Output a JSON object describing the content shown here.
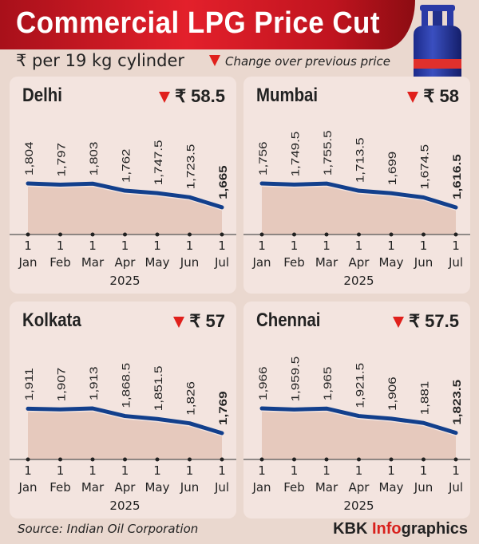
{
  "header": {
    "title": "Commercial LPG Price Cut",
    "unit": "₹ per 19 kg cylinder",
    "legend": "Change over previous price"
  },
  "colors": {
    "line": "#123f8c",
    "area": "#e6c9bd",
    "banner": "#e3202b",
    "down": "#e0201c"
  },
  "footer": {
    "source": "Source: Indian Oil Corporation",
    "brand_a": "KBK ",
    "brand_b": "Info",
    "brand_c": "graphics"
  },
  "chart_data": [
    {
      "type": "line",
      "title": "Delhi",
      "change": "₹ 58.5",
      "categories": [
        "1 Jan",
        "1 Feb",
        "1 Mar",
        "1 Apr",
        "1 May",
        "1 Jun",
        "1 Jul"
      ],
      "labels": [
        "1,804",
        "1,797",
        "1,803",
        "1,762",
        "1,747.5",
        "1,723.5",
        "1,665"
      ],
      "values": [
        1804,
        1797,
        1803,
        1762,
        1747.5,
        1723.5,
        1665
      ],
      "xlabel": "2025"
    },
    {
      "type": "line",
      "title": "Mumbai",
      "change": "₹ 58",
      "categories": [
        "1 Jan",
        "1 Feb",
        "1 Mar",
        "1 Apr",
        "1 May",
        "1 Jun",
        "1 Jul"
      ],
      "labels": [
        "1,756",
        "1,749.5",
        "1,755.5",
        "1,713.5",
        "1,699",
        "1,674.5",
        "1,616.5"
      ],
      "values": [
        1756,
        1749.5,
        1755.5,
        1713.5,
        1699,
        1674.5,
        1616.5
      ],
      "xlabel": "2025"
    },
    {
      "type": "line",
      "title": "Kolkata",
      "change": "₹ 57",
      "categories": [
        "1 Jan",
        "1 Feb",
        "1 Mar",
        "1 Apr",
        "1 May",
        "1 Jun",
        "1 Jul"
      ],
      "labels": [
        "1,911",
        "1,907",
        "1,913",
        "1,868.5",
        "1,851.5",
        "1,826",
        "1,769"
      ],
      "values": [
        1911,
        1907,
        1913,
        1868.5,
        1851.5,
        1826,
        1769
      ],
      "xlabel": "2025"
    },
    {
      "type": "line",
      "title": "Chennai",
      "change": "₹ 57.5",
      "categories": [
        "1 Jan",
        "1 Feb",
        "1 Mar",
        "1 Apr",
        "1 May",
        "1 Jun",
        "1 Jul"
      ],
      "labels": [
        "1,966",
        "1,959.5",
        "1,965",
        "1,921.5",
        "1,906",
        "1,881",
        "1,823.5"
      ],
      "values": [
        1966,
        1959.5,
        1965,
        1921.5,
        1906,
        1881,
        1823.5
      ],
      "xlabel": "2025"
    }
  ]
}
